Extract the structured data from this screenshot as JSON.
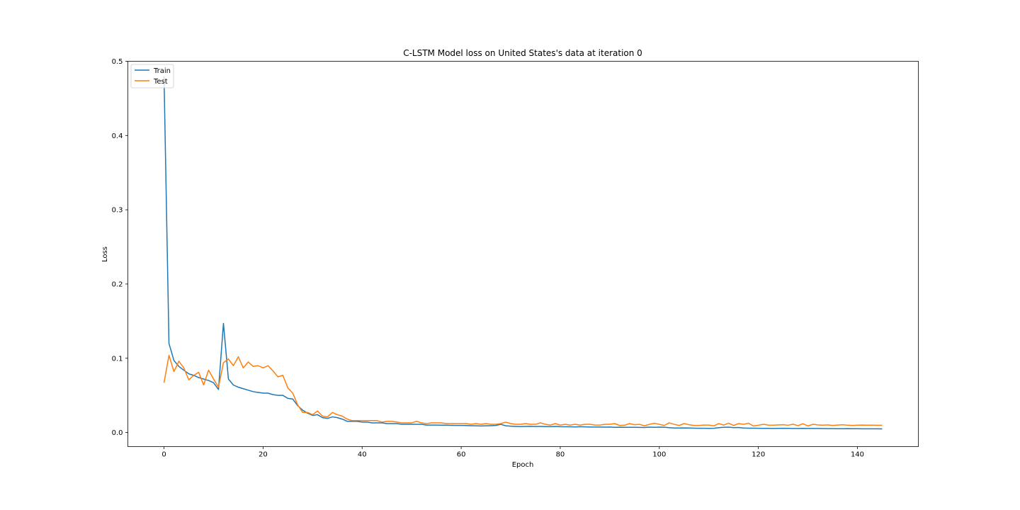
{
  "chart_data": {
    "type": "line",
    "title": "C-LSTM Model loss on United States's data at iteration 0",
    "xlabel": "Epoch",
    "ylabel": "Loss",
    "xlim": [
      -7.3,
      152.3
    ],
    "ylim": [
      -0.019,
      0.5
    ],
    "xticks": [
      0,
      20,
      40,
      60,
      80,
      100,
      120,
      140
    ],
    "yticks": [
      0.0,
      0.1,
      0.2,
      0.3,
      0.4,
      0.5
    ],
    "xtick_labels": [
      "0",
      "20",
      "40",
      "60",
      "80",
      "100",
      "120",
      "140"
    ],
    "ytick_labels": [
      "0.0",
      "0.1",
      "0.2",
      "0.3",
      "0.4",
      "0.5"
    ],
    "legend_position": "upper-left",
    "grid": false,
    "series": [
      {
        "name": "Train",
        "color": "#1f77b4",
        "values": [
          0.48,
          0.12,
          0.097,
          0.089,
          0.084,
          0.079,
          0.077,
          0.074,
          0.072,
          0.07,
          0.067,
          0.058,
          0.147,
          0.072,
          0.064,
          0.061,
          0.059,
          0.057,
          0.055,
          0.054,
          0.053,
          0.053,
          0.051,
          0.05,
          0.05,
          0.046,
          0.045,
          0.036,
          0.03,
          0.026,
          0.023,
          0.024,
          0.02,
          0.019,
          0.021,
          0.02,
          0.018,
          0.015,
          0.015,
          0.015,
          0.014,
          0.014,
          0.013,
          0.013,
          0.013,
          0.012,
          0.012,
          0.012,
          0.011,
          0.011,
          0.011,
          0.011,
          0.011,
          0.01,
          0.01,
          0.01,
          0.0099,
          0.0098,
          0.0096,
          0.0095,
          0.0095,
          0.0094,
          0.0092,
          0.009,
          0.0088,
          0.009,
          0.0092,
          0.0095,
          0.011,
          0.009,
          0.0085,
          0.0082,
          0.008,
          0.0082,
          0.0083,
          0.0081,
          0.0082,
          0.008,
          0.0078,
          0.0082,
          0.0078,
          0.0077,
          0.0077,
          0.0075,
          0.0078,
          0.0076,
          0.0074,
          0.0074,
          0.0073,
          0.0072,
          0.0073,
          0.007,
          0.0071,
          0.007,
          0.007,
          0.007,
          0.0069,
          0.0068,
          0.0072,
          0.007,
          0.0072,
          0.0071,
          0.0065,
          0.006,
          0.0061,
          0.0062,
          0.006,
          0.0058,
          0.0057,
          0.0057,
          0.0056,
          0.0057,
          0.0065,
          0.007,
          0.0072,
          0.0065,
          0.0068,
          0.006,
          0.0058,
          0.0058,
          0.0057,
          0.0056,
          0.0056,
          0.0055,
          0.0056,
          0.0057,
          0.0056,
          0.0055,
          0.0054,
          0.0056,
          0.0055,
          0.0054,
          0.0055,
          0.0053,
          0.0052,
          0.0052,
          0.0051,
          0.0051,
          0.0052,
          0.0051,
          0.0051,
          0.005,
          0.005,
          0.005,
          0.005,
          0.0049
        ]
      },
      {
        "name": "Test",
        "color": "#ff7f0e",
        "values": [
          0.067,
          0.104,
          0.082,
          0.096,
          0.087,
          0.071,
          0.077,
          0.081,
          0.064,
          0.084,
          0.072,
          0.061,
          0.094,
          0.099,
          0.09,
          0.102,
          0.087,
          0.095,
          0.089,
          0.09,
          0.087,
          0.09,
          0.083,
          0.075,
          0.077,
          0.06,
          0.053,
          0.037,
          0.027,
          0.027,
          0.024,
          0.029,
          0.022,
          0.021,
          0.027,
          0.024,
          0.022,
          0.018,
          0.016,
          0.016,
          0.016,
          0.016,
          0.016,
          0.016,
          0.014,
          0.015,
          0.015,
          0.014,
          0.013,
          0.013,
          0.013,
          0.015,
          0.013,
          0.012,
          0.013,
          0.013,
          0.013,
          0.012,
          0.012,
          0.012,
          0.012,
          0.012,
          0.011,
          0.012,
          0.011,
          0.012,
          0.011,
          0.011,
          0.012,
          0.014,
          0.012,
          0.011,
          0.011,
          0.012,
          0.011,
          0.011,
          0.013,
          0.011,
          0.01,
          0.012,
          0.01,
          0.011,
          0.01,
          0.011,
          0.01,
          0.011,
          0.011,
          0.01,
          0.01,
          0.011,
          0.011,
          0.012,
          0.0095,
          0.0098,
          0.012,
          0.0105,
          0.011,
          0.009,
          0.011,
          0.0125,
          0.011,
          0.0095,
          0.013,
          0.011,
          0.0095,
          0.012,
          0.0105,
          0.0095,
          0.0095,
          0.01,
          0.01,
          0.009,
          0.012,
          0.01,
          0.0125,
          0.0095,
          0.012,
          0.011,
          0.0125,
          0.0088,
          0.0098,
          0.011,
          0.01,
          0.0098,
          0.0102,
          0.0105,
          0.0098,
          0.0112,
          0.0092,
          0.0118,
          0.0088,
          0.011,
          0.0102,
          0.0098,
          0.0102,
          0.0095,
          0.01,
          0.0105,
          0.0098,
          0.0095,
          0.0098,
          0.01,
          0.0099,
          0.0098,
          0.0097,
          0.0097
        ]
      }
    ]
  }
}
